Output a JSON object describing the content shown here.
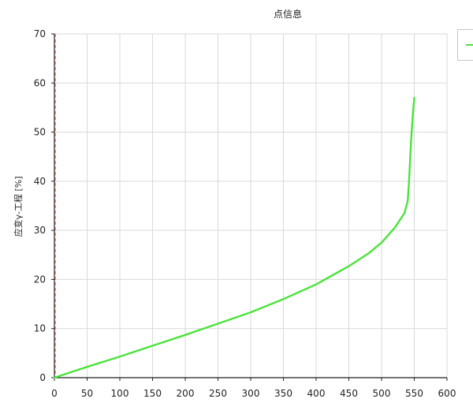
{
  "chart_data": {
    "type": "line",
    "title": "点信息",
    "xlabel": "",
    "ylabel": "应变γ-工程 [%]",
    "xlim": [
      0,
      600
    ],
    "ylim": [
      0,
      70
    ],
    "x_ticks": [
      0,
      50,
      100,
      150,
      200,
      250,
      300,
      350,
      400,
      450,
      500,
      550,
      600
    ],
    "y_ticks": [
      0,
      10,
      20,
      30,
      40,
      50,
      60,
      70
    ],
    "grid": true,
    "legend": "top-right",
    "colors": {
      "series": "#4be33b",
      "reference_line": "#d9534f",
      "grid": "#d9d9d9",
      "axis": "#222222"
    },
    "series": [
      {
        "x": [
          0,
          25,
          50,
          100,
          150,
          200,
          250,
          300,
          350,
          400,
          450,
          480,
          500,
          520,
          535,
          540,
          542,
          545,
          548,
          550
        ],
        "y": [
          0,
          1.1,
          2.2,
          4.3,
          6.5,
          8.7,
          11.0,
          13.3,
          16.0,
          19.0,
          22.7,
          25.3,
          27.5,
          30.5,
          33.5,
          36.0,
          40.0,
          48.0,
          54.0,
          57.0
        ]
      }
    ],
    "reference_lines": [
      {
        "axis": "x",
        "value": 0,
        "style": "dashed"
      }
    ]
  }
}
